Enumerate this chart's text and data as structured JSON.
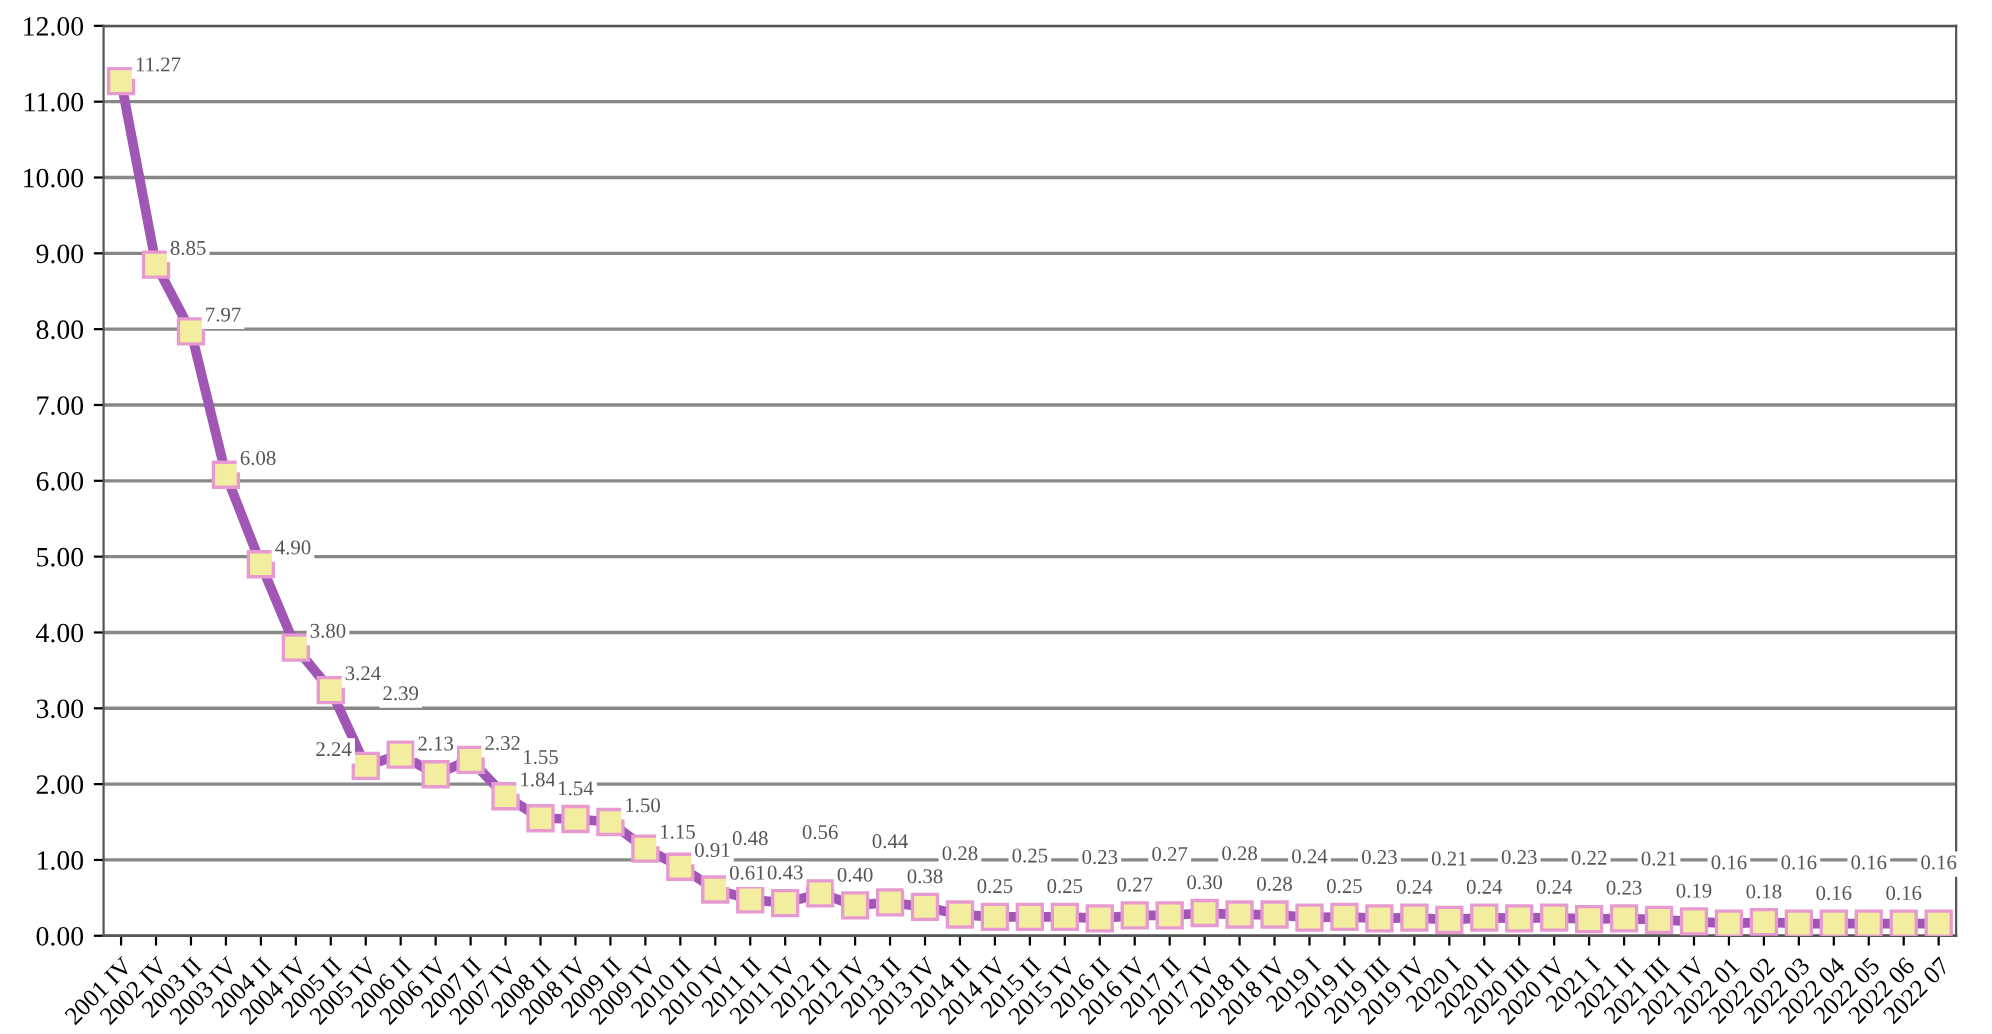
{
  "chart_data": {
    "type": "line",
    "categories": [
      "2001 IV",
      "2002 IV",
      "2003 II",
      "2003 IV",
      "2004 II",
      "2004 IV",
      "2005 II",
      "2005 IV",
      "2006 II",
      "2006 IV",
      "2007 II",
      "2007 IV",
      "2008 II",
      "2008 IV",
      "2009 II",
      "2009 IV",
      "2010 II",
      "2010 IV",
      "2011 II",
      "2011 IV",
      "2012 II",
      "2012 IV",
      "2013 II",
      "2013 IV",
      "2014 II",
      "2014 IV",
      "2015 II",
      "2015 IV",
      "2016 II",
      "2016 IV",
      "2017 II",
      "2017 IV",
      "2018 II",
      "2018 IV",
      "2019 I",
      "2019 II",
      "2019 III",
      "2019 IV",
      "2020 I",
      "2020 II",
      "2020 III",
      "2020 IV",
      "2021 I",
      "2021 II",
      "2021 III",
      "2021 IV",
      "2022 01",
      "2022 02",
      "2022 03",
      "2022 04",
      "2022 05",
      "2022 06",
      "2022 07"
    ],
    "series": [
      {
        "color": "#a056b4",
        "values": [
          11.27,
          8.85,
          7.97,
          6.08,
          4.9,
          3.8,
          3.24,
          2.24,
          2.39,
          2.13,
          2.32,
          1.84,
          1.55,
          1.54,
          1.5,
          1.15,
          0.91,
          0.61,
          0.48,
          0.43,
          0.56,
          0.4,
          0.44,
          0.38,
          0.28,
          0.25,
          0.25,
          0.25,
          0.23,
          0.27,
          0.27,
          0.3,
          0.28,
          0.28,
          0.24,
          0.25,
          0.23,
          0.24,
          0.21,
          0.24,
          0.23,
          0.24,
          0.22,
          0.23,
          0.21,
          0.19,
          0.16,
          0.18,
          0.16,
          0.16,
          0.16,
          0.16,
          0.16
        ],
        "value_labels": [
          "11.27",
          "8.85",
          "7.97",
          "6.08",
          "4.90",
          "3.80",
          "3.24",
          "2.24",
          "2.39",
          "2.13",
          "2.32",
          "1.84",
          "1.55",
          "1.54",
          "1.50",
          "1.15",
          "0.91",
          "0.61",
          "0.48",
          "0.43",
          "0.56",
          "0.40",
          "0.44",
          "0.38",
          "0.28",
          "0.25",
          "0.25",
          "0.25",
          "0.23",
          "0.27",
          "0.27",
          "0.30",
          "0.28",
          "0.28",
          "0.24",
          "0.25",
          "0.23",
          "0.24",
          "0.21",
          "0.24",
          "0.23",
          "0.24",
          "0.22",
          "0.23",
          "0.21",
          "0.19",
          "0.16",
          "0.18",
          "0.16",
          "0.16",
          "0.16",
          "0.16",
          "0.16"
        ]
      }
    ],
    "ylim": [
      0,
      12
    ],
    "yticks": [
      {
        "value": 0,
        "label": "0.00"
      },
      {
        "value": 1,
        "label": "1.00"
      },
      {
        "value": 2,
        "label": "2.00"
      },
      {
        "value": 3,
        "label": "3.00"
      },
      {
        "value": 4,
        "label": "4.00"
      },
      {
        "value": 5,
        "label": "5.00"
      },
      {
        "value": 6,
        "label": "6.00"
      },
      {
        "value": 7,
        "label": "7.00"
      },
      {
        "value": 8,
        "label": "8.00"
      },
      {
        "value": 9,
        "label": "9.00"
      },
      {
        "value": 10,
        "label": "10.00"
      },
      {
        "value": 11,
        "label": "11.00"
      },
      {
        "value": 12,
        "label": "12.00"
      }
    ],
    "grid": "y",
    "marker": "square",
    "line_style": "solid"
  }
}
